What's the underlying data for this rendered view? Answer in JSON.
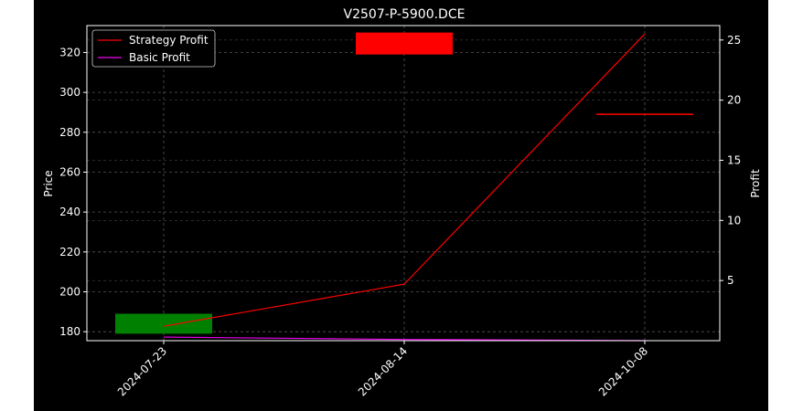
{
  "chart_data": {
    "type": "candlestick+line",
    "title": "V2507-P-5900.DCE",
    "xlabel": "",
    "ylabel_left": "Price",
    "ylabel_right": "Profit",
    "categories": [
      "2024-07-23",
      "2024-08-14",
      "2024-10-08"
    ],
    "y_left": {
      "ylim": [
        175.5,
        333.5
      ],
      "ticks": [
        180,
        200,
        220,
        240,
        260,
        280,
        300,
        320
      ]
    },
    "y_right": {
      "ylim": [
        0.0,
        26.2
      ],
      "ticks": [
        5,
        10,
        15,
        20,
        25
      ]
    },
    "grid": true,
    "legend_placement": "top-left",
    "candles": [
      {
        "date": "2024-07-23",
        "open": 179,
        "close": 189,
        "high": 189,
        "low": 179,
        "color": "#008000"
      },
      {
        "date": "2024-08-14",
        "open": 330,
        "close": 319,
        "high": 330,
        "low": 319,
        "color": "#ff0000"
      },
      {
        "date": "2024-10-08",
        "open": 289,
        "close": 289,
        "high": 289,
        "low": 289,
        "color": "#ff0000"
      }
    ],
    "series": [
      {
        "name": "Strategy Profit",
        "color": "#ff0000",
        "axis": "right",
        "values": [
          1.2,
          4.7,
          25.5
        ]
      },
      {
        "name": "Basic Profit",
        "color": "#ee00ee",
        "axis": "right",
        "values": [
          0.3,
          0.1,
          0.0
        ]
      }
    ]
  }
}
